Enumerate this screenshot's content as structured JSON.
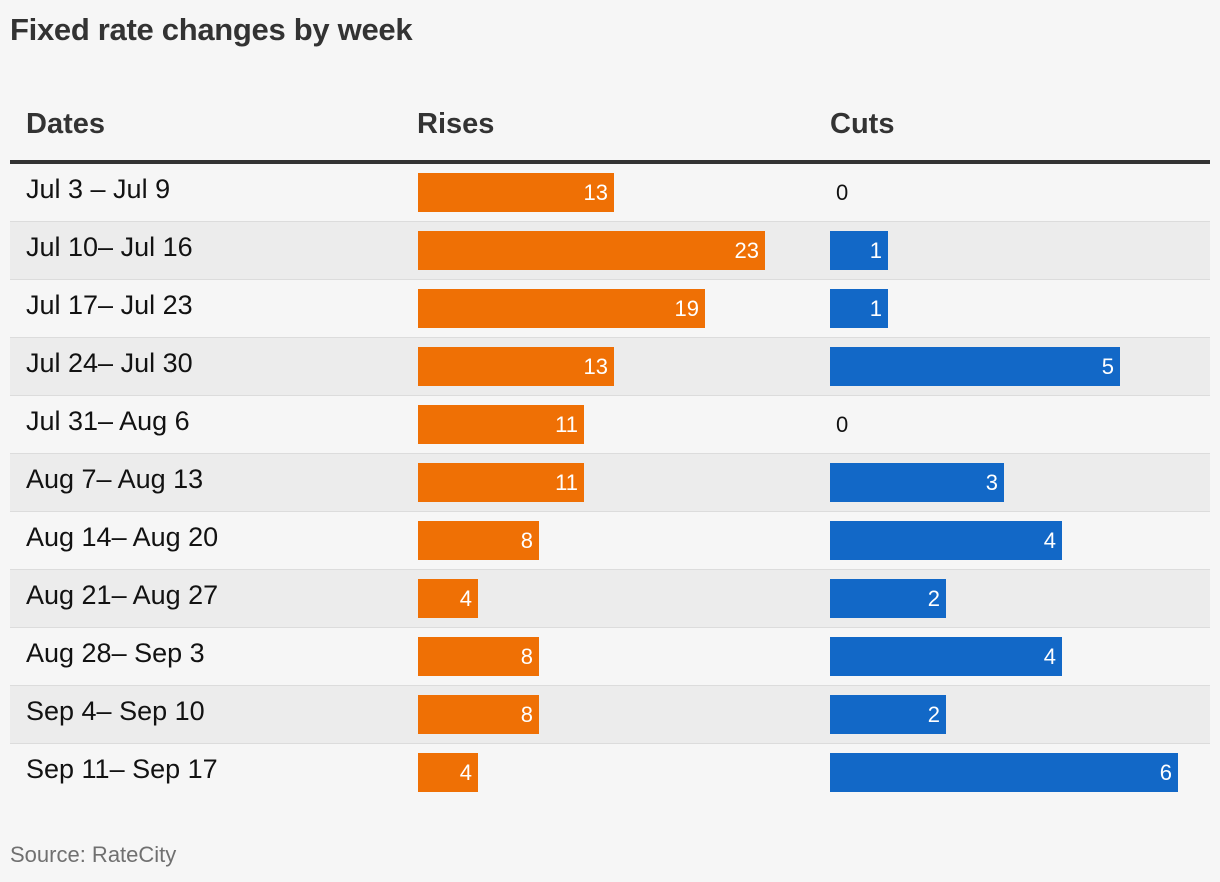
{
  "title": "Fixed rate changes by week",
  "source": "Source: RateCity",
  "headers": {
    "dates": "Dates",
    "rises": "Rises",
    "cuts": "Cuts"
  },
  "colors": {
    "rises": "#ef7005",
    "cuts": "#1268c7",
    "background": "#f6f6f6",
    "alt_row": "#ececec"
  },
  "chart_data": {
    "type": "table",
    "title": "Fixed rate changes by week",
    "columns": [
      "Dates",
      "Rises",
      "Cuts"
    ],
    "categories": [
      "Jul 3 – Jul 9",
      "Jul 10– Jul 16",
      "Jul 17– Jul 23",
      "Jul 24– Jul 30",
      "Jul 31– Aug 6",
      "Aug 7– Aug 13",
      "Aug 14– Aug 20",
      "Aug 21– Aug 27",
      "Aug 28– Sep 3",
      "Sep 4– Sep 10",
      "Sep 11– Sep 17"
    ],
    "series": [
      {
        "name": "Rises",
        "values": [
          13,
          23,
          19,
          13,
          11,
          11,
          8,
          4,
          8,
          8,
          4
        ]
      },
      {
        "name": "Cuts",
        "values": [
          0,
          1,
          1,
          5,
          0,
          3,
          4,
          2,
          4,
          2,
          6
        ]
      }
    ]
  }
}
